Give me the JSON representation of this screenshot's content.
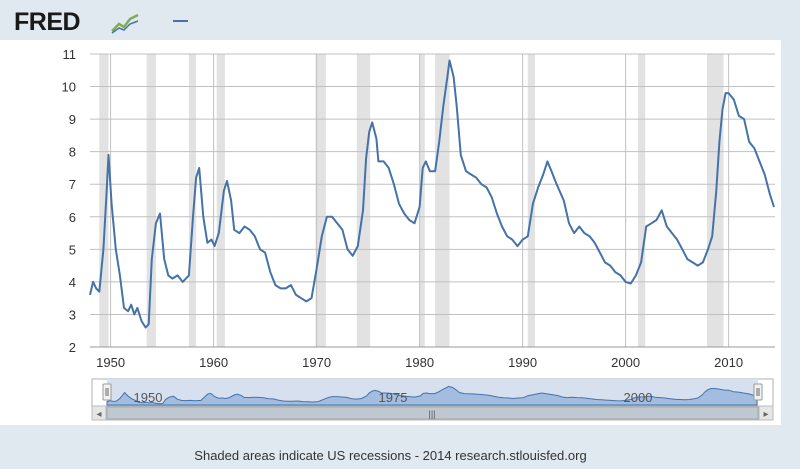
{
  "header": {
    "logo_text": "FRED",
    "logo_mark": "fred-chart-logo-icon",
    "legend_swatch_color": "#4572a7"
  },
  "footer": {
    "note": "Shaded areas indicate US recessions - 2014 research.stlouisfed.org"
  },
  "navigator": {
    "tick_labels": [
      "1950",
      "1975",
      "2000"
    ],
    "scroll_grip": "|||",
    "left_arrow": "◂",
    "right_arrow": "▸"
  },
  "colors": {
    "line": "#4572a7",
    "recession": "#e2e2e2",
    "grid": "#c0c0c0",
    "navigator_fill": "#a3bde0",
    "navigator_line": "#4572a7"
  },
  "chart_data": {
    "type": "line",
    "title": "",
    "xlabel": "",
    "ylabel": "",
    "xlim": [
      1948.0,
      2014.5
    ],
    "ylim": [
      2,
      11
    ],
    "y_ticks": [
      2,
      3,
      4,
      5,
      6,
      7,
      8,
      9,
      10,
      11
    ],
    "x_ticks": [
      1950,
      1960,
      1970,
      1980,
      1990,
      2000,
      2010
    ],
    "grid": "horizontal and vertical",
    "recessions": [
      [
        1948.9,
        1949.8
      ],
      [
        1953.5,
        1954.4
      ],
      [
        1957.6,
        1958.3
      ],
      [
        1960.3,
        1961.1
      ],
      [
        1969.9,
        1970.9
      ],
      [
        1973.9,
        1975.2
      ],
      [
        1980.0,
        1980.5
      ],
      [
        1981.5,
        1982.9
      ],
      [
        1990.5,
        1991.2
      ],
      [
        2001.2,
        2001.9
      ],
      [
        2007.9,
        2009.5
      ]
    ],
    "series": [
      {
        "values": [
          [
            1948.0,
            3.6
          ],
          [
            1948.3,
            4.0
          ],
          [
            1948.6,
            3.8
          ],
          [
            1948.9,
            3.7
          ],
          [
            1949.3,
            5.0
          ],
          [
            1949.6,
            6.7
          ],
          [
            1949.8,
            7.9
          ],
          [
            1950.1,
            6.4
          ],
          [
            1950.5,
            5.0
          ],
          [
            1950.9,
            4.2
          ],
          [
            1951.3,
            3.2
          ],
          [
            1951.7,
            3.1
          ],
          [
            1952.0,
            3.3
          ],
          [
            1952.3,
            3.0
          ],
          [
            1952.6,
            3.2
          ],
          [
            1953.0,
            2.8
          ],
          [
            1953.4,
            2.6
          ],
          [
            1953.7,
            2.7
          ],
          [
            1954.0,
            4.7
          ],
          [
            1954.4,
            5.8
          ],
          [
            1954.8,
            6.1
          ],
          [
            1955.2,
            4.7
          ],
          [
            1955.6,
            4.2
          ],
          [
            1956.0,
            4.1
          ],
          [
            1956.5,
            4.2
          ],
          [
            1957.0,
            4.0
          ],
          [
            1957.6,
            4.2
          ],
          [
            1958.0,
            6.0
          ],
          [
            1958.3,
            7.2
          ],
          [
            1958.6,
            7.5
          ],
          [
            1959.0,
            6.0
          ],
          [
            1959.4,
            5.2
          ],
          [
            1959.8,
            5.3
          ],
          [
            1960.1,
            5.1
          ],
          [
            1960.5,
            5.5
          ],
          [
            1961.0,
            6.8
          ],
          [
            1961.3,
            7.1
          ],
          [
            1961.7,
            6.5
          ],
          [
            1962.0,
            5.6
          ],
          [
            1962.5,
            5.5
          ],
          [
            1963.0,
            5.7
          ],
          [
            1963.5,
            5.6
          ],
          [
            1964.0,
            5.4
          ],
          [
            1964.5,
            5.0
          ],
          [
            1965.0,
            4.9
          ],
          [
            1965.5,
            4.3
          ],
          [
            1966.0,
            3.9
          ],
          [
            1966.5,
            3.8
          ],
          [
            1967.0,
            3.8
          ],
          [
            1967.5,
            3.9
          ],
          [
            1968.0,
            3.6
          ],
          [
            1968.5,
            3.5
          ],
          [
            1969.0,
            3.4
          ],
          [
            1969.5,
            3.5
          ],
          [
            1970.0,
            4.4
          ],
          [
            1970.5,
            5.4
          ],
          [
            1971.0,
            6.0
          ],
          [
            1971.5,
            6.0
          ],
          [
            1972.0,
            5.8
          ],
          [
            1972.5,
            5.6
          ],
          [
            1973.0,
            5.0
          ],
          [
            1973.5,
            4.8
          ],
          [
            1974.0,
            5.1
          ],
          [
            1974.5,
            6.2
          ],
          [
            1974.8,
            7.8
          ],
          [
            1975.1,
            8.6
          ],
          [
            1975.4,
            8.9
          ],
          [
            1975.8,
            8.4
          ],
          [
            1976.0,
            7.7
          ],
          [
            1976.5,
            7.7
          ],
          [
            1977.0,
            7.5
          ],
          [
            1977.5,
            7.0
          ],
          [
            1978.0,
            6.4
          ],
          [
            1978.5,
            6.1
          ],
          [
            1979.0,
            5.9
          ],
          [
            1979.5,
            5.8
          ],
          [
            1980.0,
            6.3
          ],
          [
            1980.3,
            7.5
          ],
          [
            1980.6,
            7.7
          ],
          [
            1981.0,
            7.4
          ],
          [
            1981.5,
            7.4
          ],
          [
            1981.9,
            8.3
          ],
          [
            1982.3,
            9.4
          ],
          [
            1982.7,
            10.3
          ],
          [
            1982.9,
            10.8
          ],
          [
            1983.3,
            10.3
          ],
          [
            1983.6,
            9.4
          ],
          [
            1984.0,
            7.9
          ],
          [
            1984.5,
            7.4
          ],
          [
            1985.0,
            7.3
          ],
          [
            1985.5,
            7.2
          ],
          [
            1986.0,
            7.0
          ],
          [
            1986.5,
            6.9
          ],
          [
            1987.0,
            6.6
          ],
          [
            1987.5,
            6.1
          ],
          [
            1988.0,
            5.7
          ],
          [
            1988.5,
            5.4
          ],
          [
            1989.0,
            5.3
          ],
          [
            1989.5,
            5.1
          ],
          [
            1990.0,
            5.3
          ],
          [
            1990.5,
            5.4
          ],
          [
            1991.0,
            6.4
          ],
          [
            1991.5,
            6.9
          ],
          [
            1992.0,
            7.3
          ],
          [
            1992.4,
            7.7
          ],
          [
            1992.8,
            7.4
          ],
          [
            1993.3,
            7.0
          ],
          [
            1994.0,
            6.5
          ],
          [
            1994.5,
            5.8
          ],
          [
            1995.0,
            5.5
          ],
          [
            1995.5,
            5.7
          ],
          [
            1996.0,
            5.5
          ],
          [
            1996.5,
            5.4
          ],
          [
            1997.0,
            5.2
          ],
          [
            1997.5,
            4.9
          ],
          [
            1998.0,
            4.6
          ],
          [
            1998.5,
            4.5
          ],
          [
            1999.0,
            4.3
          ],
          [
            1999.5,
            4.2
          ],
          [
            2000.0,
            4.0
          ],
          [
            2000.5,
            3.95
          ],
          [
            2001.0,
            4.2
          ],
          [
            2001.5,
            4.6
          ],
          [
            2002.0,
            5.7
          ],
          [
            2002.5,
            5.8
          ],
          [
            2003.0,
            5.9
          ],
          [
            2003.5,
            6.2
          ],
          [
            2004.0,
            5.7
          ],
          [
            2004.5,
            5.5
          ],
          [
            2005.0,
            5.3
          ],
          [
            2005.5,
            5.0
          ],
          [
            2006.0,
            4.7
          ],
          [
            2006.5,
            4.6
          ],
          [
            2007.0,
            4.5
          ],
          [
            2007.5,
            4.6
          ],
          [
            2008.0,
            5.0
          ],
          [
            2008.4,
            5.4
          ],
          [
            2008.8,
            6.8
          ],
          [
            2009.1,
            8.3
          ],
          [
            2009.4,
            9.3
          ],
          [
            2009.7,
            9.8
          ],
          [
            2010.0,
            9.8
          ],
          [
            2010.5,
            9.6
          ],
          [
            2011.0,
            9.1
          ],
          [
            2011.5,
            9.0
          ],
          [
            2012.0,
            8.3
          ],
          [
            2012.5,
            8.1
          ],
          [
            2013.0,
            7.7
          ],
          [
            2013.5,
            7.3
          ],
          [
            2014.0,
            6.7
          ],
          [
            2014.4,
            6.3
          ]
        ]
      }
    ]
  }
}
